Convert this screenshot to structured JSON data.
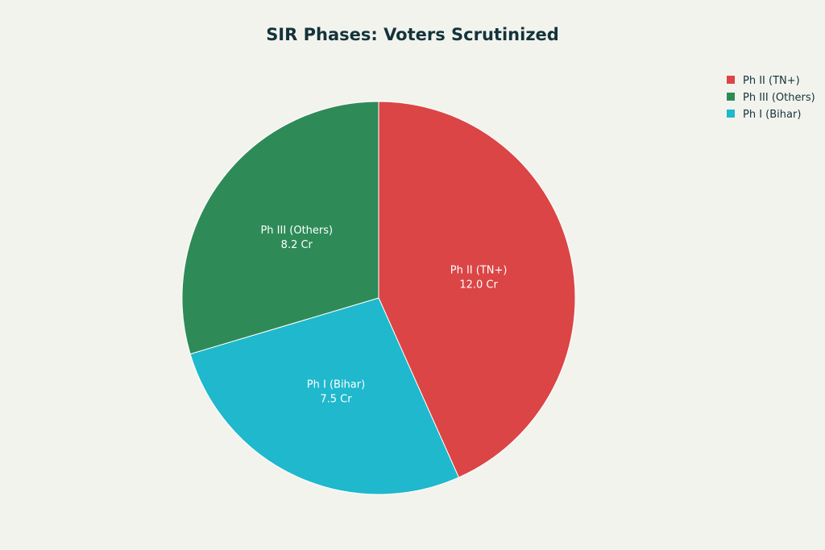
{
  "chart_data": {
    "type": "pie",
    "title": "SIR Phases: Voters Scrutinized",
    "unit": "Cr",
    "slices": [
      {
        "label": "Ph II (TN+)",
        "value": 12.0,
        "value_label": "12.0 Cr",
        "color": "#DB4545"
      },
      {
        "label": "Ph III (Others)",
        "value": 8.2,
        "value_label": "8.2 Cr",
        "color": "#2E8B57"
      },
      {
        "label": "Ph I (Bihar)",
        "value": 7.5,
        "value_label": "7.5 Cr",
        "color": "#1FB8CD"
      }
    ],
    "draw_order": [
      0,
      2,
      1
    ],
    "start": "12 o'clock",
    "direction": "clockwise",
    "legend_position": "top-right"
  }
}
